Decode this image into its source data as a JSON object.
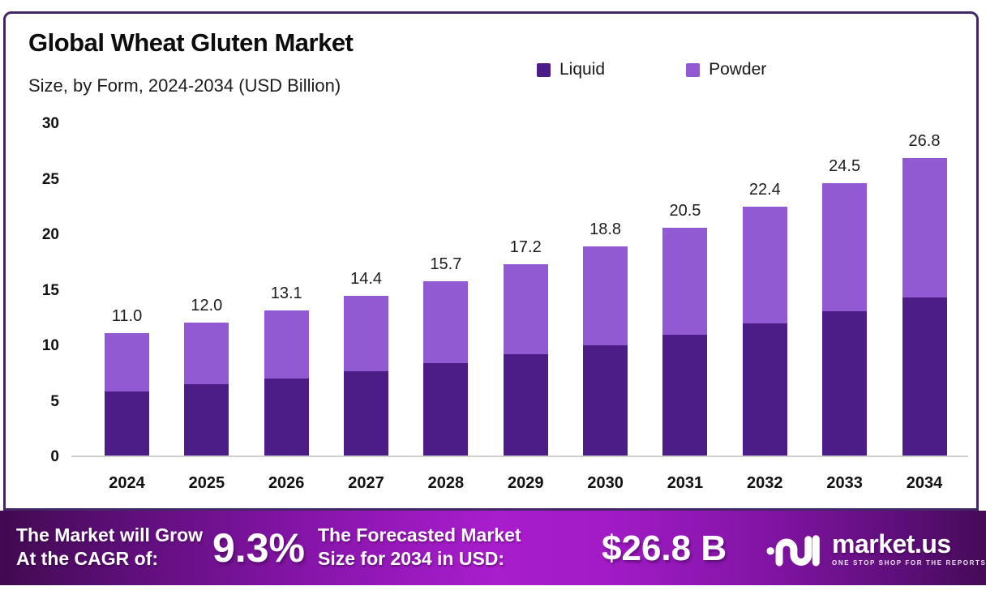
{
  "header": {
    "title": "Global Wheat Gluten Market",
    "subtitle": "Size, by Form, 2024-2034 (USD Billion)"
  },
  "legend": [
    {
      "label": "Liquid",
      "color": "#4c1c87"
    },
    {
      "label": "Powder",
      "color": "#9159d2"
    }
  ],
  "chart_data": {
    "type": "bar",
    "stacked": true,
    "title": "Global Wheat Gluten Market Size, by Form, 2024-2034 (USD Billion)",
    "categories": [
      "2024",
      "2025",
      "2026",
      "2027",
      "2028",
      "2029",
      "2030",
      "2031",
      "2032",
      "2033",
      "2034"
    ],
    "series": [
      {
        "name": "Liquid",
        "color": "#4c1c87",
        "values": [
          5.8,
          6.4,
          6.9,
          7.6,
          8.3,
          9.1,
          9.9,
          10.9,
          11.9,
          13.0,
          14.2
        ]
      },
      {
        "name": "Powder",
        "color": "#9159d2",
        "values": [
          5.2,
          5.6,
          6.2,
          6.8,
          7.4,
          8.1,
          8.9,
          9.6,
          10.5,
          11.5,
          12.6
        ]
      }
    ],
    "totals": [
      11.0,
      12.0,
      13.1,
      14.4,
      15.7,
      17.2,
      18.8,
      20.5,
      22.4,
      24.5,
      26.8
    ],
    "total_labels": [
      "11.0",
      "12.0",
      "13.1",
      "14.4",
      "15.7",
      "17.2",
      "18.8",
      "20.5",
      "22.4",
      "24.5",
      "26.8"
    ],
    "xlabel": "",
    "ylabel": "USD Billion",
    "ylim": [
      0,
      30
    ],
    "yticks": [
      0,
      5,
      10,
      15,
      20,
      25,
      30
    ],
    "grid": false,
    "legend_position": "top-right"
  },
  "footer": {
    "cagr_label_line1": "The Market will Grow",
    "cagr_label_line2": "At the CAGR of:",
    "cagr_value": "9.3%",
    "forecast_label_line1": "The Forecasted Market",
    "forecast_label_line2": "Size for 2034 in USD:",
    "forecast_value": "$26.8 B",
    "logo_name": "market.us",
    "logo_tagline": "ONE STOP SHOP FOR THE REPORTS"
  },
  "colors": {
    "liquid": "#4c1c87",
    "powder": "#9159d2",
    "chart_border": "#432866",
    "banner_magenta": "#a81dcc",
    "banner_dark": "#410a50",
    "axis_line": "#cfcfcf"
  }
}
